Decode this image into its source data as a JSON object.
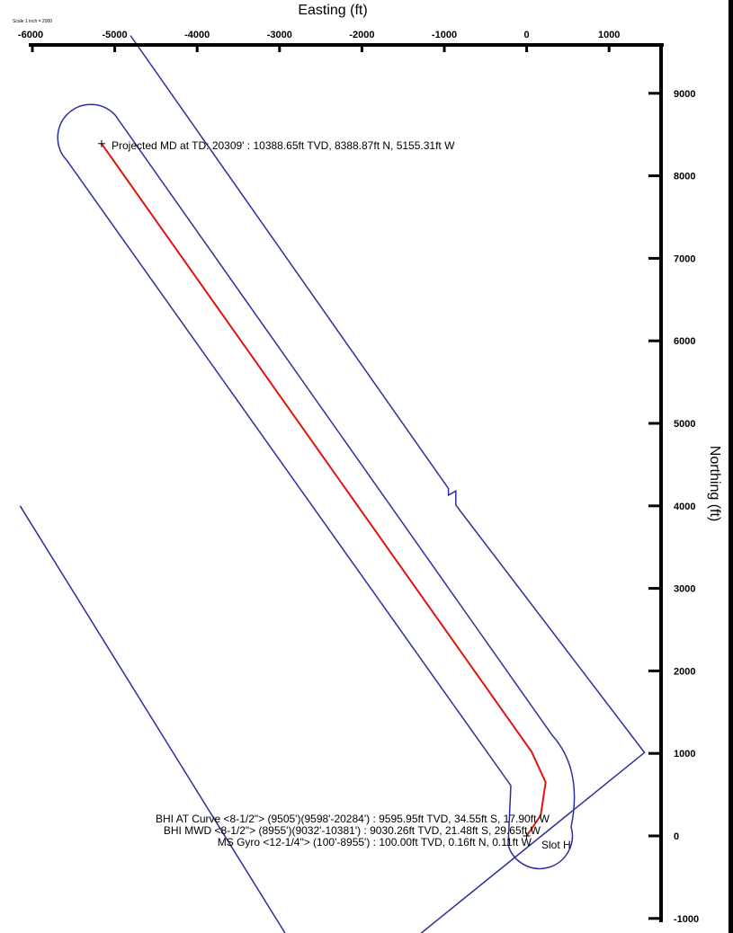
{
  "chart_data": {
    "type": "line",
    "xlabel": "Easting (ft)",
    "ylabel": "Northing (ft)",
    "xlim": [
      -6000,
      1000
    ],
    "ylim": [
      -1000,
      9000
    ],
    "xticks": [
      -6000,
      -5000,
      -4000,
      -3000,
      -2000,
      -1000,
      0,
      1000
    ],
    "yticks": [
      9000,
      8000,
      7000,
      6000,
      5000,
      4000,
      3000,
      2000,
      1000,
      0,
      -1000
    ],
    "scale_note": "Scale 1 inch = 2000",
    "series": [
      {
        "role": "well trajectory",
        "color": "#e0140c",
        "x": [
          0,
          170,
          230,
          60,
          -5160
        ],
        "y": [
          0,
          250,
          650,
          1020,
          8390
        ]
      }
    ],
    "boundaries": [
      {
        "role": "outer lease boundary",
        "color": "#2b2f9c",
        "x": [
          -4810,
          -950,
          -950,
          -860,
          -860,
          1430,
          -1630
        ],
        "y": [
          9700,
          4210,
          4130,
          4180,
          4010,
          1010,
          -1460
        ]
      },
      {
        "role": "inner lease boundary",
        "color": "#2b2f9c",
        "x": [
          -6150,
          -2770
        ],
        "y": [
          4000,
          -1440
        ]
      },
      {
        "role": "well setback envelope",
        "color": "#2b2f9c",
        "shape": "offset corridor around trajectory"
      }
    ],
    "annotations": [
      {
        "text": "Projected MD at TD: 20309' : 10388.65ft TVD, 8388.87ft N, 5155.31ft W",
        "x": -5160,
        "y": 8390,
        "marker": "+"
      },
      {
        "text": "BHI AT Curve <8-1/2\"> (9505')(9598'-20284') : 9595.95ft TVD, 34.55ft S, 17.90ft W"
      },
      {
        "text": "BHI MWD <8-1/2\"> (8955')(9032'-10381') : 9030.26ft TVD, 21.48ft S, 29.65ft W"
      },
      {
        "text": "MS Gyro <12-1/4\"> (100'-8955') : 100.00ft TVD, 0.16ft N, 0.11ft W"
      },
      {
        "text": "Slot H",
        "x": 0,
        "y": 0,
        "marker": "+"
      }
    ]
  }
}
